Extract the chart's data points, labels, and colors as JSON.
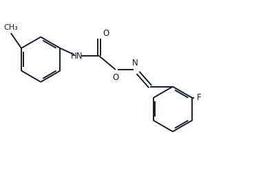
{
  "bg_color": "#ffffff",
  "line_color": "#1a1a2e",
  "font_size": 8.5,
  "line_width": 1.4,
  "figsize": [
    3.69,
    2.48
  ],
  "dpi": 100,
  "xlim": [
    0,
    9.2
  ],
  "ylim": [
    0,
    6.2
  ]
}
